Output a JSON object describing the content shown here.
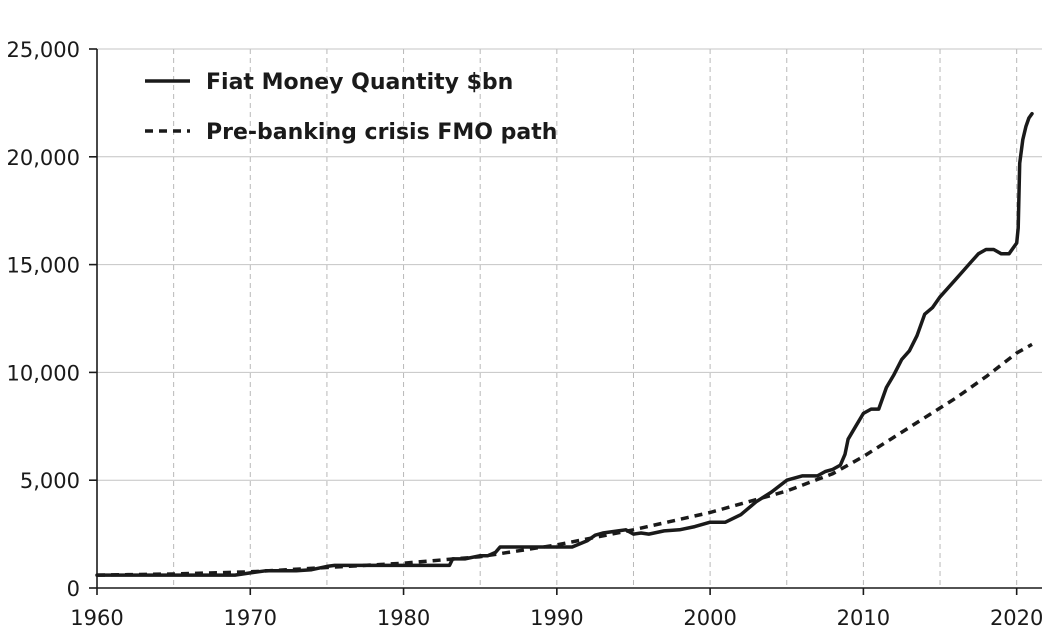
{
  "chart_data": {
    "type": "line",
    "title": "",
    "xlabel": "",
    "ylabel": "",
    "xlim": [
      1960,
      2021
    ],
    "ylim": [
      0,
      25000
    ],
    "x_ticks": [
      1960,
      1970,
      1980,
      1990,
      2000,
      2010,
      2020
    ],
    "x_tick_labels": [
      "1960",
      "1970",
      "1980",
      "1990",
      "2000",
      "2010",
      "2020"
    ],
    "y_ticks": [
      0,
      5000,
      10000,
      15000,
      20000,
      25000
    ],
    "y_tick_labels": [
      "0",
      "5,000",
      "10,000",
      "15,000",
      "20,000",
      "25,000"
    ],
    "x_minor_gridlines": [
      1965,
      1975,
      1985,
      1995,
      2005,
      2015
    ],
    "grid": true,
    "legend_position": "top-left",
    "series": [
      {
        "name": "Fiat Money Quantity $bn",
        "style": "solid",
        "color": "#1a1a1a",
        "x": [
          1960,
          1962,
          1964,
          1966,
          1968,
          1969,
          1970,
          1971,
          1972,
          1973,
          1974,
          1975,
          1975.5,
          1976,
          1977,
          1978,
          1979,
          1980,
          1981,
          1982,
          1983,
          1983.2,
          1984,
          1985,
          1985.5,
          1986,
          1986.3,
          1987,
          1988,
          1989,
          1990,
          1991,
          1992,
          1992.5,
          1993,
          1994,
          1994.5,
          1995,
          1995.5,
          1996,
          1997,
          1998,
          1999,
          2000,
          2001,
          2002,
          2003,
          2004,
          2005,
          2006,
          2006.5,
          2007,
          2007.5,
          2008,
          2008.5,
          2008.8,
          2009,
          2009.5,
          2010,
          2010.5,
          2011,
          2011.5,
          2012,
          2012.5,
          2013,
          2013.5,
          2014,
          2014.5,
          2015,
          2016,
          2016.5,
          2017,
          2017.5,
          2018,
          2018.5,
          2019,
          2019.5,
          2020,
          2020.1,
          2020.2,
          2020.4,
          2020.6,
          2020.8,
          2021
        ],
        "y": [
          600,
          600,
          600,
          600,
          600,
          600,
          700,
          800,
          800,
          800,
          850,
          1000,
          1050,
          1050,
          1050,
          1050,
          1050,
          1050,
          1050,
          1050,
          1050,
          1350,
          1350,
          1500,
          1500,
          1650,
          1900,
          1900,
          1900,
          1900,
          1900,
          1900,
          2200,
          2450,
          2550,
          2650,
          2700,
          2500,
          2550,
          2500,
          2650,
          2700,
          2850,
          3050,
          3050,
          3400,
          4000,
          4450,
          5000,
          5200,
          5200,
          5200,
          5400,
          5500,
          5700,
          6200,
          6900,
          7500,
          8100,
          8300,
          8300,
          9300,
          9900,
          10600,
          11000,
          11700,
          12700,
          13000,
          13500,
          14300,
          14700,
          15100,
          15500,
          15700,
          15700,
          15500,
          15500,
          16000,
          16700,
          19700,
          20800,
          21400,
          21800,
          22000
        ]
      },
      {
        "name": "Pre-banking crisis FMO path",
        "style": "dashed",
        "color": "#1a1a1a",
        "x": [
          1960,
          1965,
          1970,
          1975,
          1980,
          1985,
          1990,
          1995,
          2000,
          2005,
          2008,
          2010,
          2012,
          2014,
          2016,
          2018,
          2020,
          2021
        ],
        "y": [
          600,
          650,
          750,
          950,
          1150,
          1450,
          2000,
          2700,
          3500,
          4500,
          5300,
          6100,
          7000,
          7900,
          8800,
          9800,
          10900,
          11300
        ]
      }
    ]
  }
}
